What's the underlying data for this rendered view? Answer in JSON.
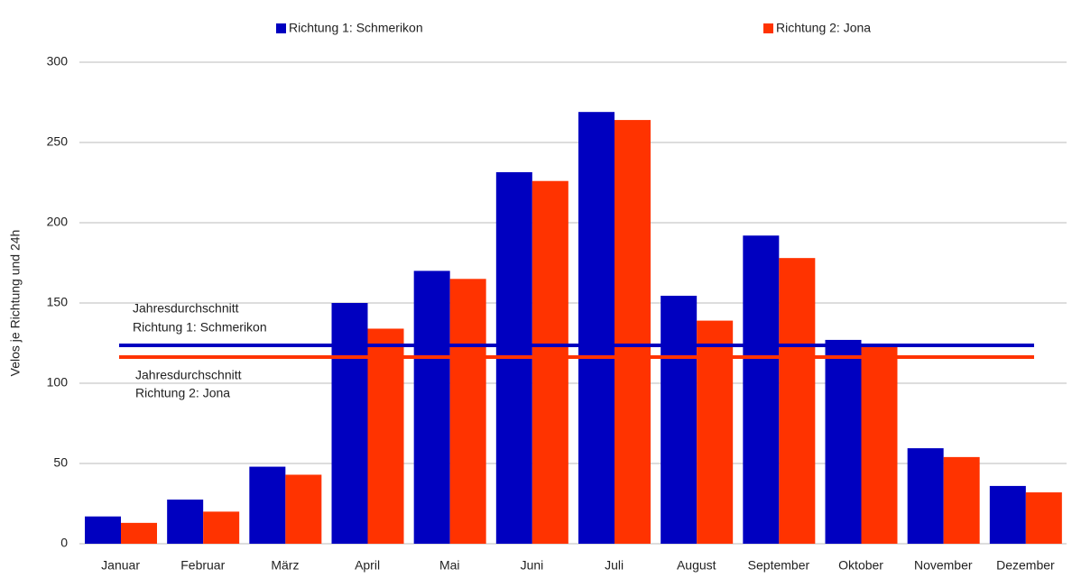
{
  "chart_data": {
    "type": "bar",
    "y_label": "Velos je Richtung und 24h",
    "categories": [
      "Januar",
      "Februar",
      "März",
      "April",
      "Mai",
      "Juni",
      "Juli",
      "August",
      "September",
      "Oktober",
      "November",
      "Dezember"
    ],
    "series": [
      {
        "name": "Richtung 1: Schmerikon",
        "color": "#0000c0",
        "values": [
          17,
          27.5,
          48,
          150,
          170,
          231.5,
          269,
          154.5,
          192,
          127,
          59.5,
          36
        ]
      },
      {
        "name": "Richtung 2: Jona",
        "color": "#ff3300",
        "values": [
          13,
          20,
          43,
          134,
          165,
          226,
          264,
          139,
          178,
          124,
          54,
          32
        ]
      }
    ],
    "reference_lines": [
      {
        "text": [
          "Jahresdurchschnitt",
          "Richtung 1: Schmerikon"
        ],
        "value": 123.6,
        "color": "#0000c0"
      },
      {
        "text": [
          "Jahresdurchschnitt",
          "Richtung 2: Jona"
        ],
        "value": 116.3,
        "color": "#ff3300"
      }
    ],
    "ylim": [
      0,
      300
    ],
    "yticks": [
      0,
      50,
      100,
      150,
      200,
      250,
      300
    ],
    "grid": true,
    "legend": "top"
  }
}
